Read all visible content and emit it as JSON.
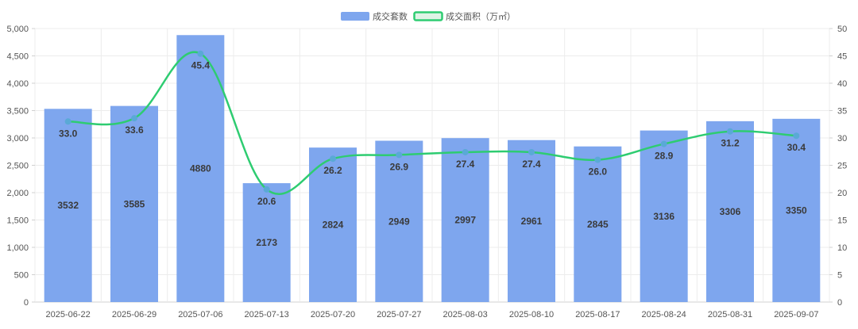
{
  "chart_data": {
    "type": "bar",
    "categories": [
      "2025-06-22",
      "2025-06-29",
      "2025-07-06",
      "2025-07-13",
      "2025-07-20",
      "2025-07-27",
      "2025-08-03",
      "2025-08-10",
      "2025-08-17",
      "2025-08-24",
      "2025-08-31",
      "2025-09-07"
    ],
    "series": [
      {
        "name": "成交套数",
        "type": "bar",
        "axis": "left",
        "color": "#7ea6ee",
        "values": [
          3532,
          3585,
          4880,
          2173,
          2824,
          2949,
          2997,
          2961,
          2845,
          3136,
          3306,
          3350
        ]
      },
      {
        "name": "成交面积（万㎡）",
        "type": "line",
        "axis": "right",
        "color": "#2ecc71",
        "point_color": "#5aa9d6",
        "values": [
          33.0,
          33.6,
          45.4,
          20.6,
          26.2,
          26.9,
          27.4,
          27.4,
          26.0,
          28.9,
          31.2,
          30.4
        ]
      }
    ],
    "left_axis": {
      "ylim": [
        0,
        5000
      ],
      "ticks": [
        "0",
        "500",
        "1,000",
        "1,500",
        "2,000",
        "2,500",
        "3,000",
        "3,500",
        "4,000",
        "4,500",
        "5,000"
      ]
    },
    "right_axis": {
      "ylim": [
        0,
        50
      ],
      "ticks": [
        "0",
        "5",
        "10",
        "15",
        "20",
        "25",
        "30",
        "35",
        "40",
        "45",
        "50"
      ]
    },
    "bar_labels": [
      "3532",
      "3585",
      "4880",
      "2173",
      "2824",
      "2949",
      "2997",
      "2961",
      "2845",
      "3136",
      "3306",
      "3350"
    ],
    "line_labels": [
      "33.0",
      "33.6",
      "45.4",
      "20.6",
      "26.2",
      "26.9",
      "27.4",
      "27.4",
      "26.0",
      "28.9",
      "31.2",
      "30.4"
    ],
    "grid": true,
    "legend": "top-center",
    "title": "",
    "xlabel": "",
    "ylabel": ""
  }
}
